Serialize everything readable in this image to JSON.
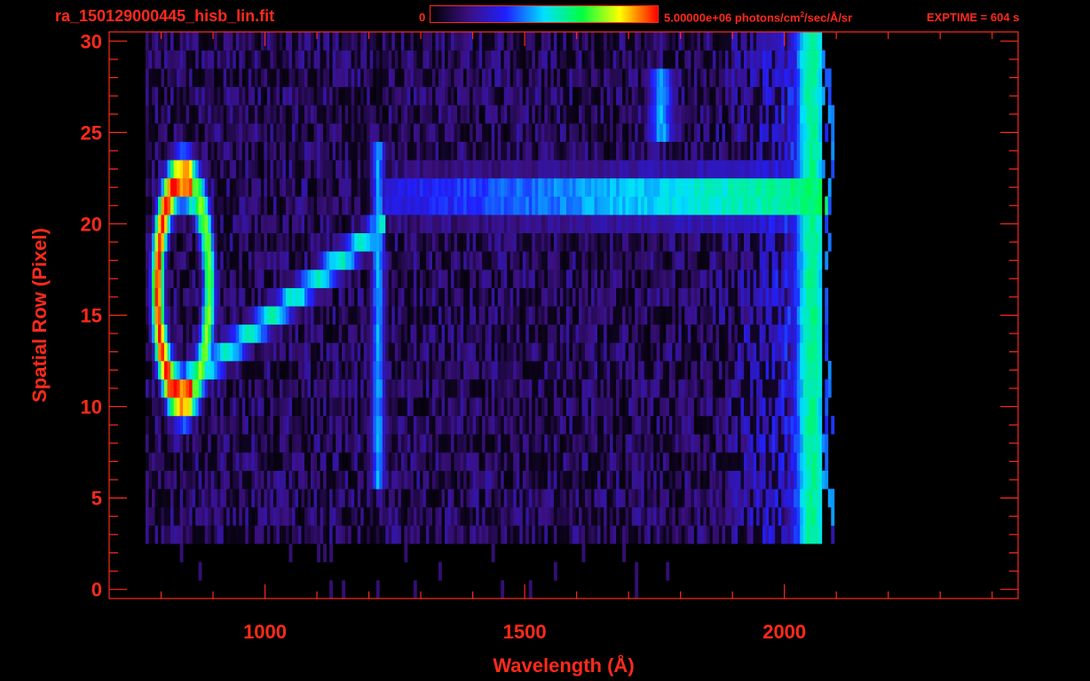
{
  "header": {
    "filename": "ra_150129000445_hisb_lin.fit",
    "colorbar_min": "0",
    "colorbar_max": "5.00000e+06 photons/cm",
    "colorbar_max_sup": "2",
    "colorbar_max_tail": "/sec/Å/sr",
    "exptime": "EXPTIME = 604 s"
  },
  "colors": {
    "axis": "#ff2a1a",
    "background": "#000000",
    "colormap": [
      "#000000",
      "#3a1080",
      "#2020ff",
      "#00e0ff",
      "#00ff40",
      "#ffff00",
      "#ff0000"
    ]
  },
  "chart_data": {
    "type": "heatmap",
    "title": "ra_150129000445_hisb_lin.fit",
    "xlabel": "Wavelength (Å)",
    "ylabel": "Spatial Row (Pixel)",
    "xlim": [
      700,
      2450
    ],
    "ylim": [
      -0.5,
      30.5
    ],
    "x_ticks": [
      1000,
      1500,
      2000
    ],
    "y_ticks": [
      0,
      5,
      10,
      15,
      20,
      25,
      30
    ],
    "zlim": [
      0,
      5000000
    ],
    "z_unit": "photons/cm2/sec/Å/sr",
    "colormap": "rainbow",
    "features": [
      {
        "name": "ring",
        "center_wavelength": 840,
        "center_row": 16.5,
        "half_width_wavelength": 50,
        "half_height_rows": 6,
        "peak_fraction": 1.0
      },
      {
        "name": "diagonal band",
        "from_wavelength": 880,
        "from_row": 12,
        "to_wavelength": 1230,
        "to_row": 20,
        "peak_fraction": 0.55
      },
      {
        "name": "upper band",
        "from_wavelength": 1230,
        "to_wavelength": 2080,
        "rows": [
          20,
          23
        ],
        "peak_fraction": 0.7
      },
      {
        "name": "line 1215",
        "wavelength": 1215,
        "rows": [
          6,
          24
        ],
        "peak_fraction": 0.45
      },
      {
        "name": "blob 1760",
        "wavelength": 1760,
        "rows": [
          25,
          28
        ],
        "peak_fraction": 0.45
      },
      {
        "name": "edge",
        "wavelength": 2050,
        "rows": [
          1,
          30
        ],
        "peak_fraction": 0.6
      }
    ]
  }
}
